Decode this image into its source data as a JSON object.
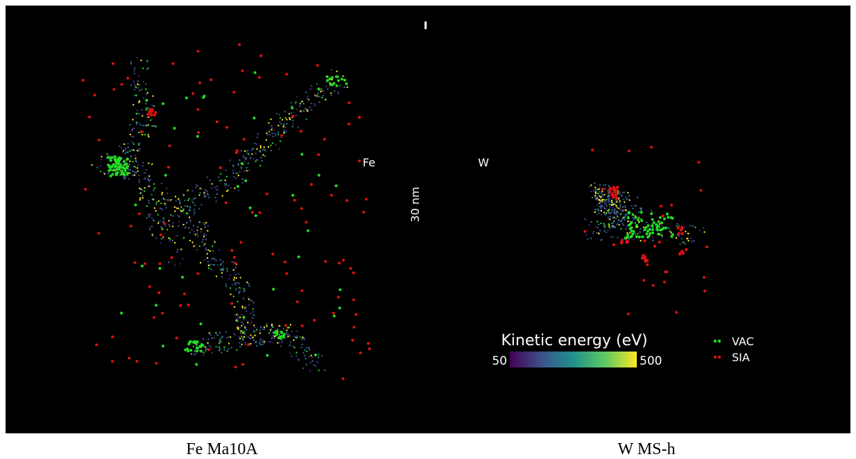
{
  "panels": [
    {
      "label": "Fe",
      "caption": "Fe Ma10A"
    },
    {
      "label": "W",
      "caption": "W MS-h"
    }
  ],
  "scale_bar": "30 nm",
  "colorbar": {
    "title": "Kinetic energy (eV)",
    "min": 50,
    "max": 500
  },
  "legend": [
    {
      "name": "VAC",
      "color": "#22dd22"
    },
    {
      "name": "SIA",
      "color": "#dd1111"
    }
  ]
}
